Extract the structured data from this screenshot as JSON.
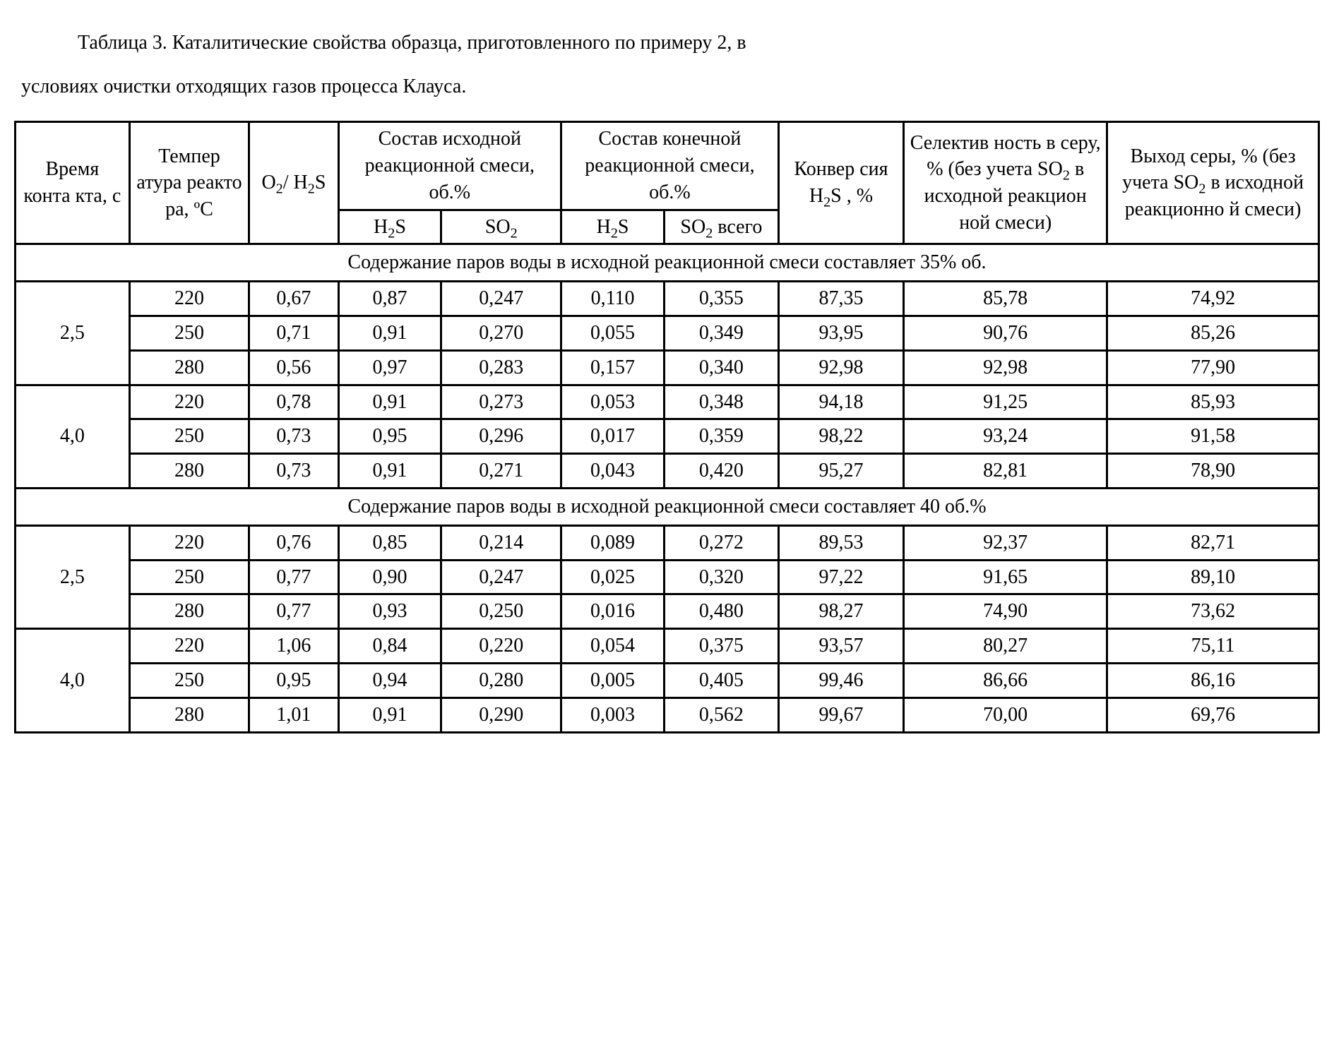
{
  "caption_line1": "Таблица 3. Каталитические свойства образца, приготовленного по примеру 2, в",
  "caption_line2": "условиях очистки отходящих газов процесса Клауса.",
  "headers": {
    "time": "Время конта кта, с",
    "temp": "Темпер атура реакто ра, ºС",
    "ratio_html": "O<sub>2</sub>/ H<sub>2</sub>S",
    "mix_in_top": "Состав исходной реакционной смеси, об.%",
    "mix_out_top": "Состав конечной реакционной смеси, об.%",
    "h2s_html": "H<sub>2</sub>S",
    "so2_html": "SO<sub>2</sub>",
    "so2_total_html": "SO<sub>2</sub> всего",
    "conv_html": "Конвер сия H<sub>2</sub>S , %",
    "sel_html": "Селектив ность в серу, % (без учета SO<sub>2</sub> в исходной реакцион ной смеси)",
    "yield_html": "Выход серы, % (без учета SO<sub>2</sub> в исходной реакционно й смеси)"
  },
  "sections": [
    {
      "title": "Содержание паров воды в исходной реакционной смеси составляет 35% об.",
      "groups": [
        {
          "time": "2,5",
          "rows": [
            [
              "220",
              "0,67",
              "0,87",
              "0,247",
              "0,110",
              "0,355",
              "87,35",
              "85,78",
              "74,92"
            ],
            [
              "250",
              "0,71",
              "0,91",
              "0,270",
              "0,055",
              "0,349",
              "93,95",
              "90,76",
              "85,26"
            ],
            [
              "280",
              "0,56",
              "0,97",
              "0,283",
              "0,157",
              "0,340",
              "92,98",
              "92,98",
              "77,90"
            ]
          ]
        },
        {
          "time": "4,0",
          "rows": [
            [
              "220",
              "0,78",
              "0,91",
              "0,273",
              "0,053",
              "0,348",
              "94,18",
              "91,25",
              "85,93"
            ],
            [
              "250",
              "0,73",
              "0,95",
              "0,296",
              "0,017",
              "0,359",
              "98,22",
              "93,24",
              "91,58"
            ],
            [
              "280",
              "0,73",
              "0,91",
              "0,271",
              "0,043",
              "0,420",
              "95,27",
              "82,81",
              "78,90"
            ]
          ]
        }
      ]
    },
    {
      "title": "Содержание паров воды в исходной реакционной смеси составляет 40 об.%",
      "groups": [
        {
          "time": "2,5",
          "rows": [
            [
              "220",
              "0,76",
              "0,85",
              "0,214",
              "0,089",
              "0,272",
              "89,53",
              "92,37",
              "82,71"
            ],
            [
              "250",
              "0,77",
              "0,90",
              "0,247",
              "0,025",
              "0,320",
              "97,22",
              "91,65",
              "89,10"
            ],
            [
              "280",
              "0,77",
              "0,93",
              "0,250",
              "0,016",
              "0,480",
              "98,27",
              "74,90",
              "73,62"
            ]
          ]
        },
        {
          "time": "4,0",
          "rows": [
            [
              "220",
              "1,06",
              "0,84",
              "0,220",
              "0,054",
              "0,375",
              "93,57",
              "80,27",
              "75,11"
            ],
            [
              "250",
              "0,95",
              "0,94",
              "0,280",
              "0,005",
              "0,405",
              "99,46",
              "86,66",
              "86,16"
            ],
            [
              "280",
              "1,01",
              "0,91",
              "0,290",
              "0,003",
              "0,562",
              "99,67",
              "70,00",
              "69,76"
            ]
          ]
        }
      ]
    }
  ]
}
